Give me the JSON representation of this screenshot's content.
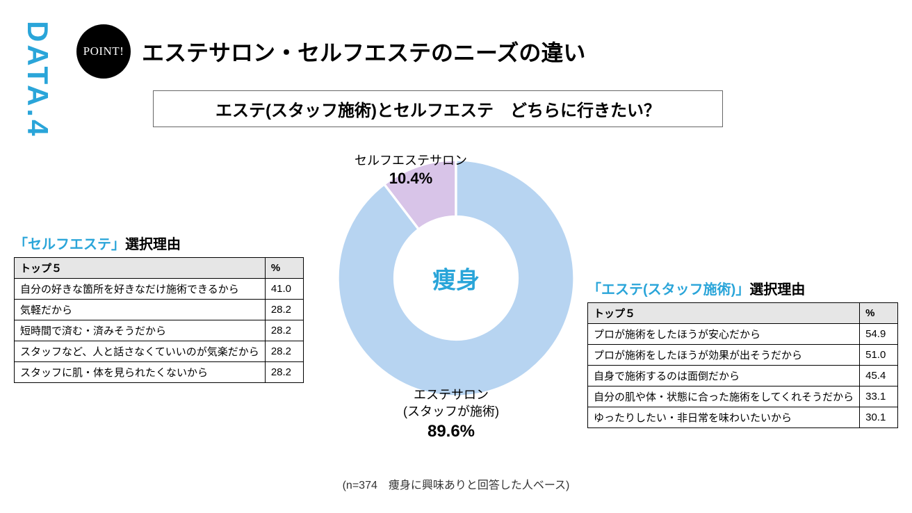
{
  "colors": {
    "accent": "#2aa5d9",
    "badge_bg": "#000000",
    "badge_text": "#ffffff",
    "title_text": "#000000"
  },
  "side_label": "DATA.4",
  "point_badge": "POINT!",
  "main_title": "エステサロン・セルフエステのニーズの違い",
  "question": "エステ(スタッフ施術)とセルフエステ　どちらに行きたい？",
  "chart": {
    "type": "donut",
    "center_label": "痩身",
    "center_color": "#2aa5d9",
    "inner_radius_ratio": 0.52,
    "background_color": "#ffffff",
    "segments": [
      {
        "name": "セルフエステサロン",
        "value": 10.4,
        "color": "#d8c4e8",
        "start_deg": -37.44,
        "end_deg": 0
      },
      {
        "name": "エステサロン",
        "sublabel": "(スタッフが施術)",
        "value": 89.6,
        "color": "#b7d4f1",
        "start_deg": 0,
        "end_deg": 322.56
      }
    ],
    "label_top": {
      "name": "セルフエステサロン",
      "pct": "10.4%"
    },
    "label_bottom": {
      "name": "エステサロン",
      "sub": "(スタッフが施術)",
      "pct": "89.6%"
    }
  },
  "left_table": {
    "title_prefix": "「セルフエステ」",
    "title_suffix": "選択理由",
    "title_color": "#2aa5d9",
    "header": [
      "トップ５",
      "%"
    ],
    "rows": [
      [
        "自分の好きな箇所を好きなだけ施術できるから",
        "41.0"
      ],
      [
        "気軽だから",
        "28.2"
      ],
      [
        "短時間で済む・済みそうだから",
        "28.2"
      ],
      [
        "スタッフなど、人と話さなくていいのが気楽だから",
        "28.2"
      ],
      [
        "スタッフに肌・体を見られたくないから",
        "28.2"
      ]
    ]
  },
  "right_table": {
    "title_prefix": "「エステ(スタッフ施術)」",
    "title_suffix": "選択理由",
    "title_color": "#2aa5d9",
    "header": [
      "トップ５",
      "%"
    ],
    "rows": [
      [
        "プロが施術をしたほうが安心だから",
        "54.9"
      ],
      [
        "プロが施術をしたほうが効果が出そうだから",
        "51.0"
      ],
      [
        "自身で施術するのは面倒だから",
        "45.4"
      ],
      [
        "自分の肌や体・状態に合った施術をしてくれそうだから",
        "33.1"
      ],
      [
        "ゆったりしたい・非日常を味わいたいから",
        "30.1"
      ]
    ]
  },
  "footnote": "(n=374　痩身に興味ありと回答した人ベース)"
}
